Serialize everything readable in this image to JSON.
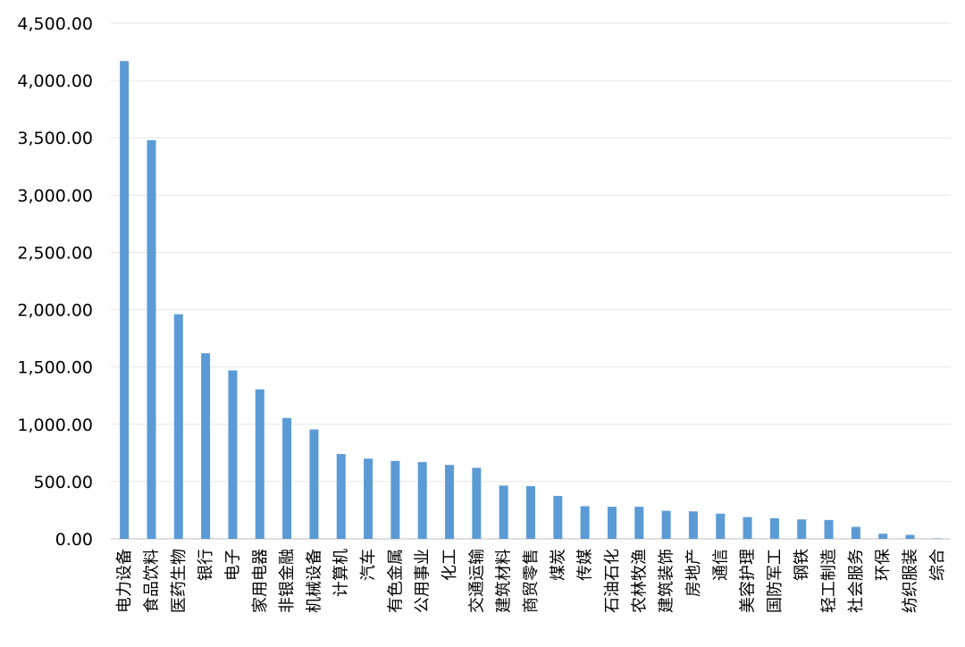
{
  "chart_data": {
    "type": "bar",
    "title": "",
    "xlabel": "",
    "ylabel": "",
    "ylim": [
      0,
      4500
    ],
    "yticks": [
      0,
      500,
      1000,
      1500,
      2000,
      2500,
      3000,
      3500,
      4000,
      4500
    ],
    "ytick_labels": [
      "0.00",
      "500.00",
      "1,000.00",
      "1,500.00",
      "2,000.00",
      "2,500.00",
      "3,000.00",
      "3,500.00",
      "4,000.00",
      "4,500.00"
    ],
    "grid": true,
    "legend": "none",
    "bar_color": "#5b9bd5",
    "categories": [
      "电力设备",
      "食品饮料",
      "医药生物",
      "银行",
      "电子",
      "家用电器",
      "非银金融",
      "机械设备",
      "计算机",
      "汽车",
      "有色金属",
      "公用事业",
      "化工",
      "交通运输",
      "建筑材料",
      "商贸零售",
      "煤炭",
      "传媒",
      "石油石化",
      "农林牧渔",
      "建筑装饰",
      "房地产",
      "通信",
      "美容护理",
      "国防军工",
      "钢铁",
      "轻工制造",
      "社会服务",
      "环保",
      "纺织服装",
      "综合"
    ],
    "values": [
      4170,
      3480,
      1960,
      1620,
      1470,
      1305,
      1055,
      955,
      740,
      700,
      680,
      670,
      645,
      620,
      465,
      460,
      375,
      285,
      280,
      280,
      245,
      240,
      220,
      190,
      180,
      170,
      165,
      105,
      45,
      35,
      5
    ]
  }
}
